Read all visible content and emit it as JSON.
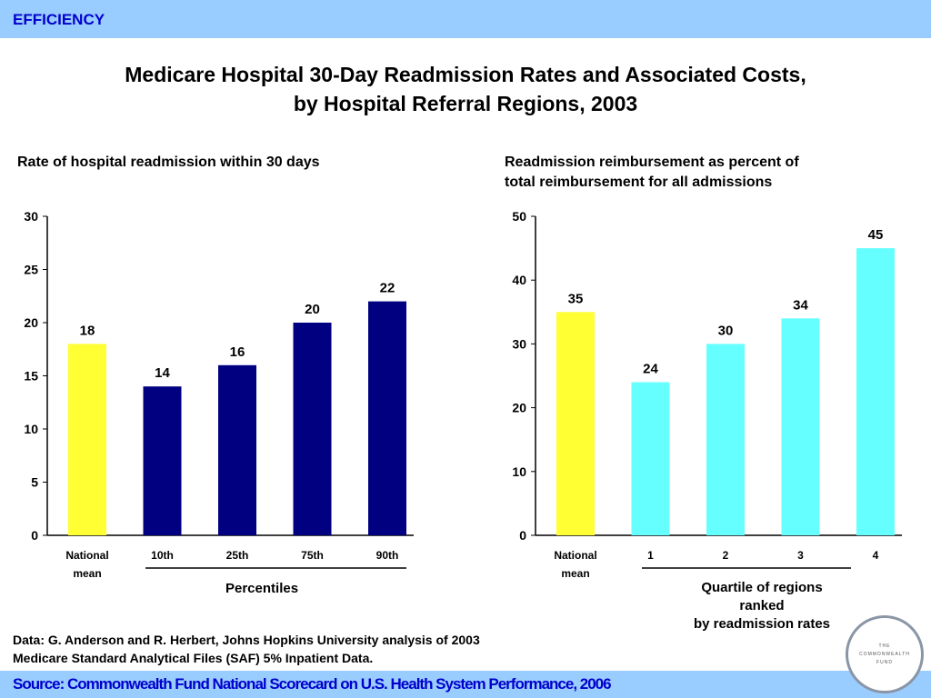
{
  "header": {
    "label": "EFFICIENCY"
  },
  "title_line1": "Medicare Hospital 30-Day Readmission Rates and Associated Costs,",
  "title_line2": "by Hospital Referral Regions, 2003",
  "note_line1": "Data: G. Anderson and R. Herbert, Johns Hopkins University analysis of 2003",
  "note_line2": "Medicare Standard Analytical Files (SAF) 5% Inpatient Data.",
  "footer": {
    "source": "Source: Commonwealth Fund National Scorecard on U.S. Health System Performance, 2006"
  },
  "logo": {
    "line1": "THE",
    "line2": "COMMONWEALTH",
    "line3": "FUND"
  },
  "chart_data": [
    {
      "type": "bar",
      "title": "Rate of hospital readmission within 30 days",
      "xlabel": "Percentiles",
      "categories": [
        "National mean",
        "10th",
        "25th",
        "75th",
        "90th"
      ],
      "values": [
        18,
        14,
        16,
        20,
        22
      ],
      "data_labels": [
        "18",
        "14",
        "16",
        "20",
        "22"
      ],
      "colors": [
        "#ffff33",
        "#000080",
        "#000080",
        "#000080",
        "#000080"
      ],
      "ylim": [
        0,
        30
      ],
      "yticks": [
        "0",
        "5",
        "10",
        "15",
        "20",
        "25",
        "30"
      ],
      "grid": false
    },
    {
      "type": "bar",
      "title_line1": "Readmission reimbursement as percent of",
      "title_line2": "total reimbursement for all admissions",
      "xlabel_lines": [
        "Quartile of regions",
        "ranked",
        "by readmission rates"
      ],
      "categories": [
        "National mean",
        "1",
        "2",
        "3",
        "4"
      ],
      "values": [
        35,
        24,
        30,
        34,
        45
      ],
      "data_labels": [
        "35",
        "24",
        "30",
        "34",
        "45"
      ],
      "colors": [
        "#ffff33",
        "#66ffff",
        "#66ffff",
        "#66ffff",
        "#66ffff"
      ],
      "ylim": [
        0,
        50
      ],
      "yticks": [
        "0",
        "10",
        "20",
        "30",
        "40",
        "50"
      ],
      "grid": false
    }
  ]
}
